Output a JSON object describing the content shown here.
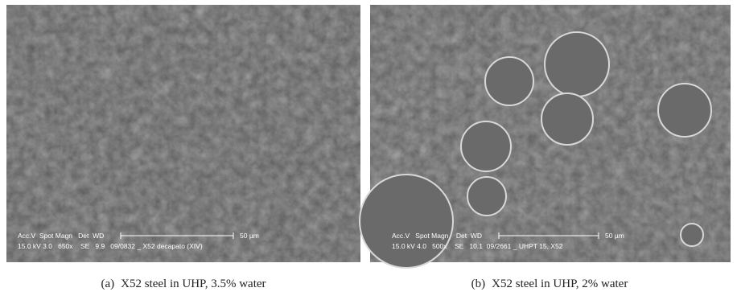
{
  "panels": [
    {
      "overlay": {
        "header": "Acc.V  Spot Magn   Det  WD",
        "scale": "50 µm",
        "footer": "15.0 kV 3.0   650x    SE   9.9   09/0832 _ X52 decapato (XIV)"
      },
      "caption": {
        "label": "(a)",
        "text": "X52 steel in UHP, 3.5% water"
      }
    },
    {
      "overlay": {
        "header": "Acc.V   Spot Magn    Det  WD",
        "scale": "50 µm",
        "footer": "15.0 kV 4.0   500x    SE   10.1  09/2661 _ UHPT 15, X52"
      },
      "caption": {
        "label": "(b)",
        "text": "X52 steel in UHP, 2% water"
      }
    }
  ]
}
